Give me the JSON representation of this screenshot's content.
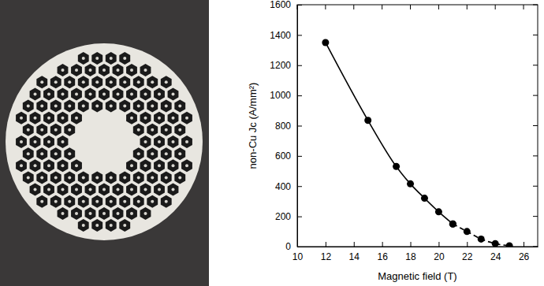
{
  "chart_data": {
    "type": "line",
    "x_label": "Magnetic field (T)",
    "y_label": "non-Cu Jc (A/mm²)",
    "x": [
      12,
      15,
      17,
      18,
      19,
      20,
      21,
      22,
      23,
      24,
      25
    ],
    "series": [
      {
        "color": "#000000",
        "marker": "circle",
        "line_style": "solid",
        "values": [
          1350,
          835,
          530,
          415,
          320,
          230,
          150,
          null,
          null,
          null,
          null
        ]
      },
      {
        "color": "#000000",
        "marker": "circle",
        "line_style": "dashed",
        "values": [
          null,
          null,
          null,
          null,
          null,
          null,
          150,
          100,
          50,
          20,
          5
        ]
      }
    ],
    "xlim": [
      10,
      27
    ],
    "xticks": [
      10,
      12,
      14,
      16,
      18,
      20,
      22,
      24,
      26
    ],
    "ylim": [
      0,
      1600
    ],
    "yticks": [
      0,
      200,
      400,
      600,
      800,
      1000,
      1200,
      1400,
      1600
    ],
    "grid": false
  }
}
